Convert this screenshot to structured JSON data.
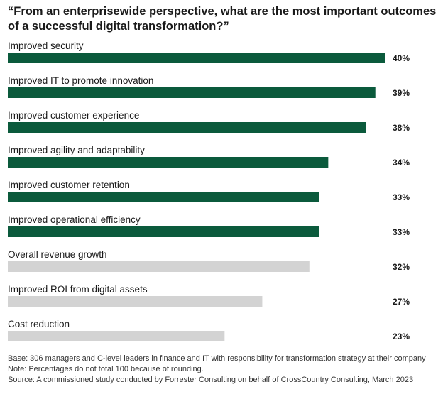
{
  "title_lines": [
    "“From an enterprisewide perspective, what are the most important outcomes",
    "of a successful digital transformation?”"
  ],
  "chart_data": {
    "type": "bar",
    "orientation": "horizontal",
    "categories": [
      "Improved security",
      "Improved IT to promote innovation",
      "Improved customer experience",
      "Improved agility and adaptability",
      "Improved customer retention",
      "Improved operational efficiency",
      "Overall revenue growth",
      "Improved ROI from digital assets",
      "Cost reduction"
    ],
    "values": [
      40,
      39,
      38,
      34,
      33,
      33,
      32,
      27,
      23
    ],
    "value_labels": [
      "40%",
      "39%",
      "38%",
      "34%",
      "33%",
      "33%",
      "32%",
      "27%",
      "23%"
    ],
    "highlighted": [
      true,
      true,
      true,
      true,
      true,
      true,
      false,
      false,
      false
    ],
    "unit": "%",
    "xlim": [
      0,
      40
    ],
    "grid": false,
    "colors": {
      "highlight": "#0b5a3c",
      "muted": "#d3d3d3"
    }
  },
  "footnotes": {
    "base": "Base: 306 managers and C-level leaders in finance and IT with responsibility for transformation strategy at their company",
    "note": "Note: Percentages do not total 100 because of rounding.",
    "source": "Source: A commissioned study conducted by Forrester Consulting on behalf of CrossCountry Consulting, March 2023"
  }
}
